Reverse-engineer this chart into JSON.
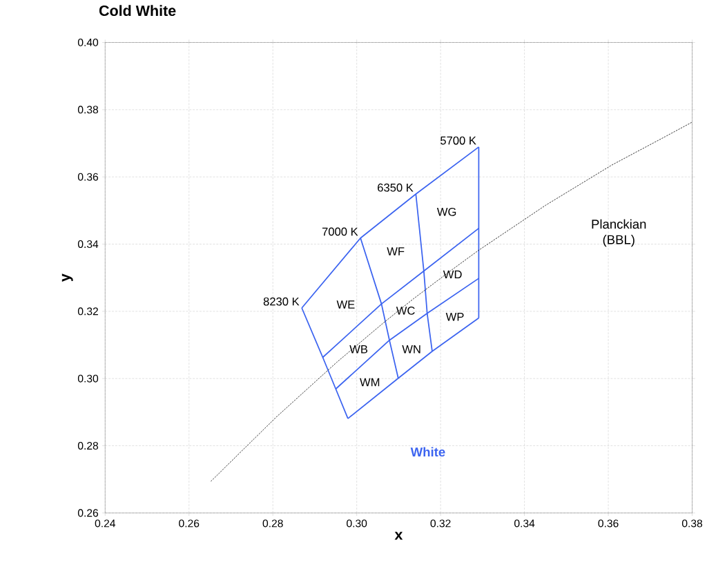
{
  "chart_data": {
    "type": "line",
    "title": "Cold White",
    "xlabel": "x",
    "ylabel": "y",
    "xlim": [
      0.24,
      0.38
    ],
    "ylim": [
      0.26,
      0.4
    ],
    "xticks": [
      {
        "value": 0.24,
        "label": "0.24"
      },
      {
        "value": 0.26,
        "label": "0.26"
      },
      {
        "value": 0.28,
        "label": "0.28"
      },
      {
        "value": 0.3,
        "label": "0.30"
      },
      {
        "value": 0.32,
        "label": "0.32"
      },
      {
        "value": 0.34,
        "label": "0.34"
      },
      {
        "value": 0.36,
        "label": "0.36"
      },
      {
        "value": 0.38,
        "label": "0.38"
      }
    ],
    "yticks": [
      {
        "value": 0.26,
        "label": "0.26"
      },
      {
        "value": 0.28,
        "label": "0.28"
      },
      {
        "value": 0.3,
        "label": "0.30"
      },
      {
        "value": 0.32,
        "label": "0.32"
      },
      {
        "value": 0.34,
        "label": "0.34"
      },
      {
        "value": 0.36,
        "label": "0.36"
      },
      {
        "value": 0.38,
        "label": "0.38"
      },
      {
        "value": 0.4,
        "label": "0.40"
      }
    ],
    "grid": true,
    "legend": false,
    "series": [
      {
        "name": "White",
        "color": "#3c64f0",
        "line_style": "solid",
        "x": [
          0.2869,
          0.3009,
          0.3141,
          0.3291
        ],
        "values": [
          0.321,
          0.3418,
          0.3549,
          0.3689
        ]
      },
      {
        "color": "#3c64f0",
        "line_style": "solid",
        "x": [
          0.3291,
          0.3291,
          0.3291,
          0.3291
        ],
        "values": [
          0.3689,
          0.3447,
          0.3298,
          0.318
        ]
      },
      {
        "color": "#3c64f0",
        "line_style": "solid",
        "x": [
          0.2979,
          0.3099,
          0.318,
          0.3291
        ],
        "values": [
          0.2881,
          0.3001,
          0.3081,
          0.318
        ]
      },
      {
        "color": "#3c64f0",
        "line_style": "solid",
        "x": [
          0.2869,
          0.2919,
          0.295,
          0.2979
        ],
        "values": [
          0.321,
          0.3063,
          0.2969,
          0.2881
        ]
      },
      {
        "color": "#3c64f0",
        "line_style": "solid",
        "x": [
          0.3009,
          0.3059,
          0.3078,
          0.3099
        ],
        "values": [
          0.3418,
          0.3222,
          0.3114,
          0.3001
        ]
      },
      {
        "color": "#3c64f0",
        "line_style": "solid",
        "x": [
          0.3141,
          0.316,
          0.3168,
          0.318
        ],
        "values": [
          0.3549,
          0.332,
          0.3194,
          0.3081
        ]
      },
      {
        "color": "#3c64f0",
        "line_style": "solid",
        "x": [
          0.2919,
          0.3059,
          0.316,
          0.3291
        ],
        "values": [
          0.3063,
          0.3222,
          0.332,
          0.3447
        ]
      },
      {
        "color": "#3c64f0",
        "line_style": "solid",
        "x": [
          0.295,
          0.3078,
          0.3168,
          0.3291
        ],
        "values": [
          0.2969,
          0.3114,
          0.3194,
          0.3298
        ]
      },
      {
        "name": "Planckian (BBL)",
        "color": "#000000",
        "line_style": "dotted",
        "x": [
          0.2652,
          0.2807,
          0.2952,
          0.3064,
          0.3135,
          0.3221,
          0.329,
          0.3451,
          0.3608,
          0.3736,
          0.38
        ],
        "values": [
          0.2694,
          0.2884,
          0.3048,
          0.3166,
          0.3237,
          0.3318,
          0.3381,
          0.3516,
          0.3635,
          0.372,
          0.3763
        ]
      }
    ],
    "annotations": [
      {
        "text": "8230 K",
        "x": 0.2869,
        "y": 0.321
      },
      {
        "text": "7000 K",
        "x": 0.3009,
        "y": 0.3418
      },
      {
        "text": "6350 K",
        "x": 0.3141,
        "y": 0.3549
      },
      {
        "text": "5700 K",
        "x": 0.3291,
        "y": 0.3689
      },
      "WE",
      "WF",
      "WG",
      "WD",
      "WC",
      "WP",
      "WB",
      "WN",
      "WM"
    ]
  }
}
